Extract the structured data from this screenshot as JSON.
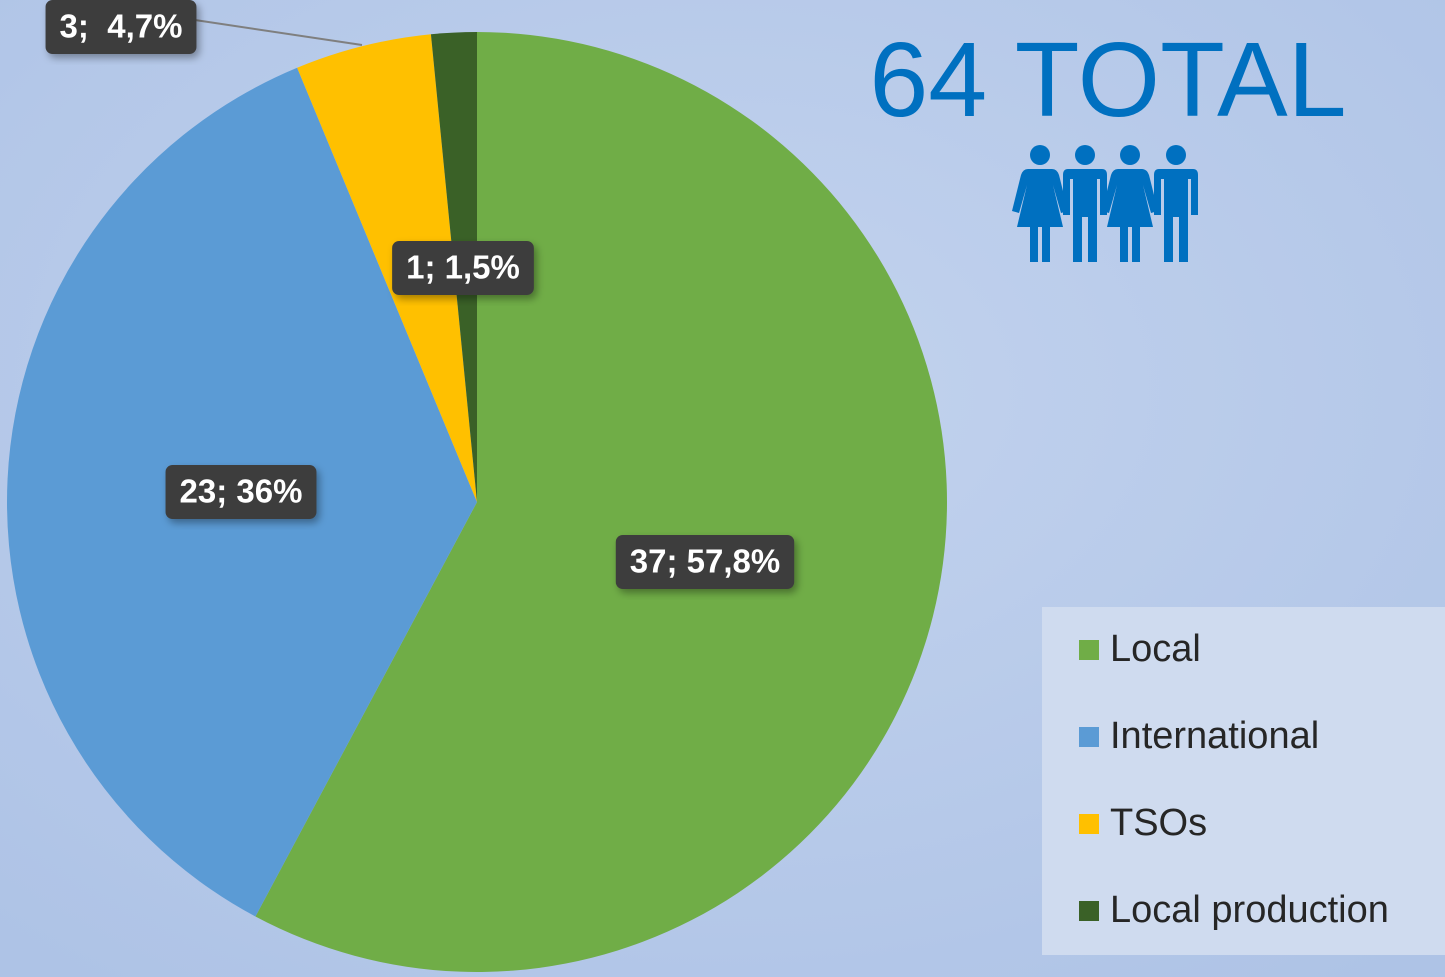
{
  "chart_data": {
    "type": "pie",
    "title": "64 TOTAL",
    "categories": [
      "Local",
      "International",
      "TSOs",
      "Local production"
    ],
    "values": [
      37,
      23,
      3,
      1
    ],
    "value_labels": [
      "37; 57,8%",
      "23; 36%",
      "3;  4,7%",
      "1; 1,5%"
    ],
    "colors": [
      "#70ad47",
      "#5b9bd5",
      "#ffc000",
      "#3a6127"
    ],
    "legend": "right"
  }
}
